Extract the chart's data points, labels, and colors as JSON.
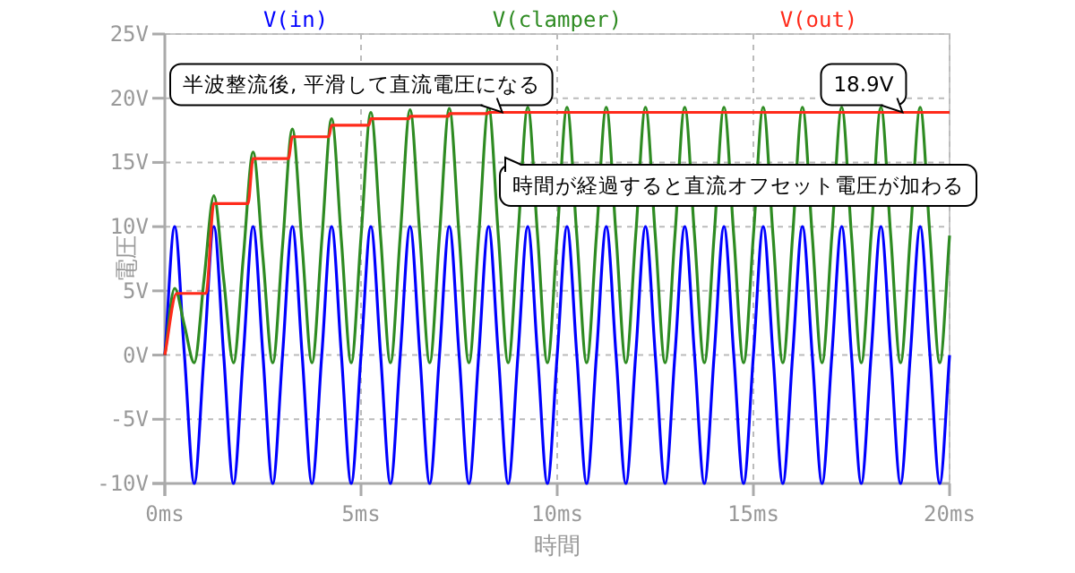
{
  "chart_data": {
    "type": "line",
    "xlabel": "時間",
    "ylabel": "電圧",
    "xlim": [
      0,
      20
    ],
    "ylim": [
      -10,
      25
    ],
    "xticks": [
      {
        "value": 0,
        "label": "0ms"
      },
      {
        "value": 5,
        "label": "5ms"
      },
      {
        "value": 10,
        "label": "10ms"
      },
      {
        "value": 15,
        "label": "15ms"
      },
      {
        "value": 20,
        "label": "20ms"
      }
    ],
    "yticks": [
      {
        "value": -10,
        "label": "-10V"
      },
      {
        "value": -5,
        "label": "-5V"
      },
      {
        "value": 0,
        "label": "0V"
      },
      {
        "value": 5,
        "label": "5V"
      },
      {
        "value": 10,
        "label": "10V"
      },
      {
        "value": 15,
        "label": "15V"
      },
      {
        "value": 20,
        "label": "20V"
      },
      {
        "value": 25,
        "label": "25V"
      }
    ],
    "grid": true,
    "legend": "top",
    "x": [
      0,
      0.25,
      0.5,
      0.75,
      1,
      1.25,
      1.5,
      1.75,
      2,
      2.25,
      2.5,
      2.75,
      3,
      3.25,
      3.5,
      3.75,
      4,
      4.25,
      4.5,
      4.75,
      5,
      5.25,
      5.5,
      5.75,
      6,
      6.25,
      6.5,
      6.75,
      7,
      7.25,
      7.5,
      7.75,
      8,
      8.25,
      8.5,
      8.75,
      9,
      9.25,
      9.5,
      9.75,
      10,
      10.25,
      10.5,
      10.75,
      11,
      11.25,
      11.5,
      11.75,
      12,
      12.25,
      12.5,
      12.75,
      13,
      13.25,
      13.5,
      13.75,
      14,
      14.25,
      14.5,
      14.75,
      15,
      15.25,
      15.5,
      15.75,
      16,
      16.25,
      16.5,
      16.75,
      17,
      17.25,
      17.5,
      17.75,
      18,
      18.25,
      18.5,
      18.75,
      19,
      19.25,
      19.5,
      19.75,
      20
    ],
    "series": [
      {
        "name": "V(in)",
        "color": "#0000ff",
        "values": [
          0,
          10,
          0,
          -10,
          0,
          10,
          0,
          -10,
          0,
          10,
          0,
          -10,
          0,
          10,
          0,
          -10,
          0,
          10,
          0,
          -10,
          0,
          10,
          0,
          -10,
          0,
          10,
          0,
          -10,
          0,
          10,
          0,
          -10,
          0,
          10,
          0,
          -10,
          0,
          10,
          0,
          -10,
          0,
          10,
          0,
          -10,
          0,
          10,
          0,
          -10,
          0,
          10,
          0,
          -10,
          0,
          10,
          0,
          -10,
          0,
          10,
          0,
          -10,
          0,
          10,
          0,
          -10,
          0,
          10,
          0,
          -10,
          0,
          10,
          0,
          -10,
          0,
          10,
          0,
          -10,
          0,
          10,
          0,
          -10,
          0
        ]
      },
      {
        "name": "V(clamper)",
        "color": "#2e8b22",
        "values": [
          0,
          5.2,
          2.3,
          -0.6,
          5.9,
          12.4,
          5.9,
          -0.6,
          7.6,
          15.8,
          7.6,
          -0.6,
          8.5,
          17.6,
          8.5,
          -0.6,
          8.9,
          18.4,
          8.9,
          -0.6,
          9.2,
          18.9,
          9.2,
          -0.6,
          9.3,
          19.1,
          9.3,
          -0.6,
          9.3,
          19.2,
          9.3,
          -0.6,
          9.3,
          19.3,
          9.3,
          -0.6,
          9.3,
          19.3,
          9.3,
          -0.6,
          9.3,
          19.3,
          9.3,
          -0.6,
          9.3,
          19.3,
          9.3,
          -0.6,
          9.3,
          19.3,
          9.3,
          -0.6,
          9.3,
          19.3,
          9.3,
          -0.6,
          9.3,
          19.3,
          9.3,
          -0.6,
          9.3,
          19.3,
          9.3,
          -0.6,
          9.3,
          19.3,
          9.3,
          -0.6,
          9.3,
          19.3,
          9.3,
          -0.6,
          9.3,
          19.3,
          9.3,
          -0.6,
          9.3,
          19.3,
          9.3,
          -0.6,
          9.3
        ]
      },
      {
        "name": "V(out)",
        "color": "#ff2a1a",
        "x": [
          0,
          0.3,
          1.05,
          1.25,
          2.12,
          2.25,
          3.15,
          3.25,
          4.18,
          4.25,
          5.2,
          5.25,
          6.22,
          6.25,
          7.23,
          7.25,
          8.23,
          8.25,
          20
        ],
        "values": [
          0,
          4.8,
          4.8,
          11.8,
          11.8,
          15.3,
          15.3,
          17.0,
          17.0,
          17.9,
          17.9,
          18.4,
          18.4,
          18.6,
          18.6,
          18.8,
          18.8,
          18.9,
          18.9
        ]
      }
    ],
    "annotations": [
      {
        "text": "半波整流後, 平滑して直流電圧になる",
        "x": 8.6,
        "y": 18.9
      },
      {
        "text": "18.9V",
        "x": 18.8,
        "y": 18.9
      },
      "時間が経過すると直流オフセット電圧が加わる"
    ]
  }
}
